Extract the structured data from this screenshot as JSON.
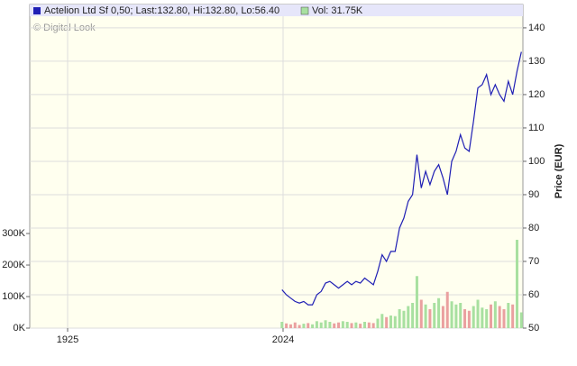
{
  "chart_data": {
    "type": "price-volume",
    "watermark": "© Digital Look",
    "y_label": "Price (EUR)",
    "x": [
      2023.5,
      2025.5,
      2027.5,
      2029.5,
      2031.5,
      2033.5,
      2035.5,
      2037.5,
      2039.5,
      2041.5,
      2043.5,
      2045.5,
      2047.5,
      2049.5,
      2051.5,
      2053.5,
      2055.5,
      2057.5,
      2059.5,
      2061.5,
      2063.5,
      2065.5,
      2067.5,
      2069.5,
      2071.5,
      2073.5,
      2075.5,
      2077.5,
      2079.5,
      2081.5,
      2083.5,
      2085.5,
      2087.5,
      2089.5,
      2091.5,
      2093.5,
      2095.5,
      2097.5,
      2099.5,
      2101.5,
      2103.5,
      2105.5,
      2107.5,
      2109.5,
      2111.5,
      2113.5,
      2115.5,
      2117.5,
      2119.5,
      2121.5,
      2123.5,
      2125.5,
      2127.5,
      2129.5,
      2131.5,
      2133.5
    ],
    "series": [
      {
        "name": "Actelion Ltd  Sf 0,50; Last:132.80, Hi:132.80, Lo:56.40",
        "color": "#1f1fb4",
        "values": [
          61.5,
          60,
          59,
          58,
          57.5,
          58,
          57,
          57,
          60,
          61,
          63.5,
          64,
          63,
          62,
          63,
          64,
          63,
          64,
          63.5,
          65,
          64,
          63,
          67,
          72,
          70,
          73,
          73,
          80,
          83,
          88,
          90,
          102,
          92,
          97,
          93,
          97,
          99,
          95,
          90,
          100,
          103,
          108,
          104,
          103,
          112,
          122,
          123,
          126,
          120,
          123,
          120,
          118,
          124,
          120,
          127,
          132.8
        ]
      },
      {
        "name": "Vol: 31.75K",
        "color": "#a8e0a0",
        "axis": "y2",
        "values": [
          20000,
          15000,
          12000,
          18000,
          10000,
          14000,
          16000,
          12000,
          22000,
          18000,
          25000,
          20000,
          15000,
          18000,
          22000,
          20000,
          16000,
          18000,
          14000,
          20000,
          18000,
          16000,
          30000,
          45000,
          35000,
          40000,
          38000,
          60000,
          55000,
          70000,
          80000,
          165000,
          90000,
          75000,
          60000,
          80000,
          95000,
          70000,
          115000,
          85000,
          75000,
          80000,
          60000,
          55000,
          70000,
          90000,
          65000,
          60000,
          75000,
          85000,
          70000,
          60000,
          80000,
          75000,
          280000,
          50000
        ]
      }
    ],
    "up_color": "#a8e0a0",
    "down_color": "#eaa0a0",
    "xlim": [
      1907.6,
      2134.2
    ],
    "xticks": [
      1925,
      2024
    ],
    "ylim": [
      50,
      147
    ],
    "yticks": [
      50,
      60,
      70,
      80,
      90,
      100,
      110,
      120,
      130,
      140
    ],
    "y2lim": [
      0,
      1026000
    ],
    "y2ticks": [
      {
        "value": 0,
        "label": "0K"
      },
      {
        "value": 100000,
        "label": "100K"
      },
      {
        "value": 200000,
        "label": "200K"
      },
      {
        "value": 300000,
        "label": "300K"
      }
    ],
    "grid": true
  }
}
